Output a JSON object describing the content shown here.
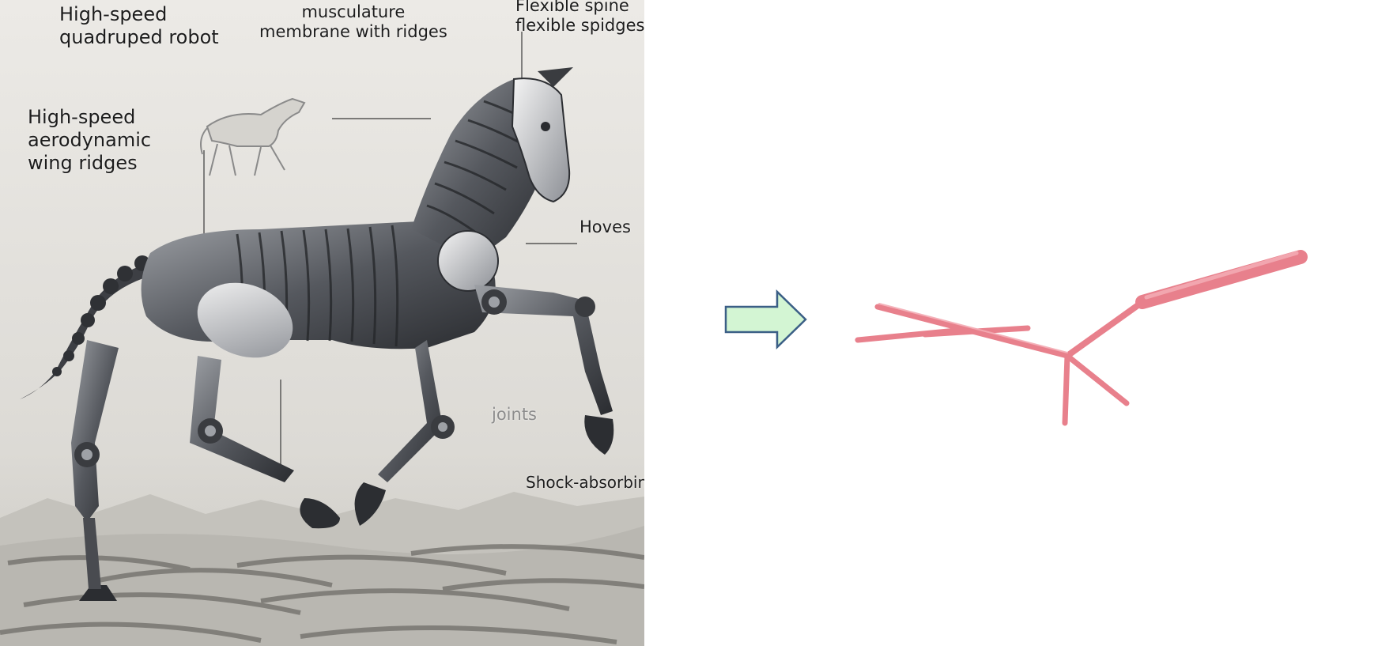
{
  "illustration": {
    "labels": [
      "High-speed\nquadruped robot",
      "sleek shell,\nmusculature\nmembrane with ridges",
      "Flexible spine\nflexible spidges",
      "High-speed\naerodynamic\nwing ridges",
      "Hoves",
      "joints",
      "Shock-absorbing"
    ]
  },
  "colors": {
    "arrow_fill": "#d3f5d3",
    "arrow_stroke": "#3b5f86",
    "skeleton": "#e8808c",
    "skeleton_highlight": "#f3aab2",
    "robot_metal": "#5a5d63",
    "background_sky": "#e6e5e1",
    "dune": "#a9a7a1"
  },
  "icons": {
    "transition": "right-arrow-icon",
    "output": "stick-skeleton-graph"
  }
}
